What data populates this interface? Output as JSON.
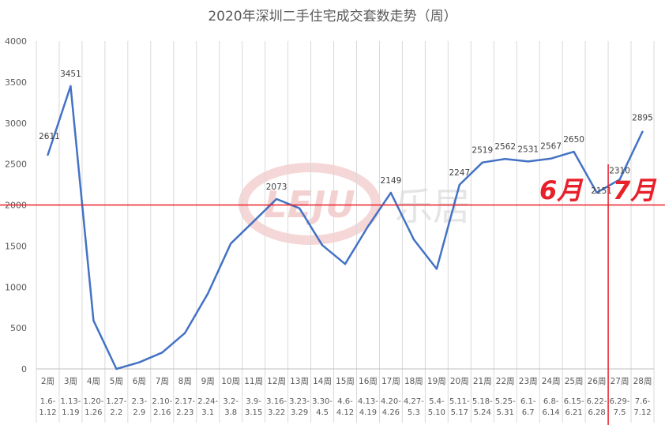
{
  "chart_data": {
    "type": "line",
    "title": "2020年深圳二手住宅成交套数走势（周）",
    "ylim": [
      0,
      4000
    ],
    "yticks": [
      0,
      500,
      1000,
      1500,
      2000,
      2500,
      3000,
      3500,
      4000
    ],
    "grid": "vertical",
    "series_color": "#4472c4",
    "categories": [
      {
        "week": "2周",
        "range1": "1.6-",
        "range2": "1.12"
      },
      {
        "week": "3周",
        "range1": "1.13-",
        "range2": "1.19"
      },
      {
        "week": "4周",
        "range1": "1.20-",
        "range2": "1.26"
      },
      {
        "week": "5周",
        "range1": "1.27-",
        "range2": "2.2"
      },
      {
        "week": "6周",
        "range1": "2.3-",
        "range2": "2.9"
      },
      {
        "week": "7周",
        "range1": "2.10-",
        "range2": "2.16"
      },
      {
        "week": "8周",
        "range1": "2.17-",
        "range2": "2.23"
      },
      {
        "week": "9周",
        "range1": "2.24-",
        "range2": "3.1"
      },
      {
        "week": "10周",
        "range1": "3.2-",
        "range2": "3.8"
      },
      {
        "week": "11周",
        "range1": "3.9-",
        "range2": "3.15"
      },
      {
        "week": "12周",
        "range1": "3.16-",
        "range2": "3.22"
      },
      {
        "week": "13周",
        "range1": "3.23-",
        "range2": "3.29"
      },
      {
        "week": "14周",
        "range1": "3.30-",
        "range2": "4.5"
      },
      {
        "week": "15周",
        "range1": "4.6-",
        "range2": "4.12"
      },
      {
        "week": "16周",
        "range1": "4.13-",
        "range2": "4.19"
      },
      {
        "week": "17周",
        "range1": "4.20-",
        "range2": "4.26"
      },
      {
        "week": "18周",
        "range1": "4.27-",
        "range2": "5.3"
      },
      {
        "week": "19周",
        "range1": "5.4-",
        "range2": "5.10"
      },
      {
        "week": "20周",
        "range1": "5.11-",
        "range2": "5.17"
      },
      {
        "week": "21周",
        "range1": "5.18-",
        "range2": "5.24"
      },
      {
        "week": "22周",
        "range1": "5.25-",
        "range2": "5.31"
      },
      {
        "week": "23周",
        "range1": "6.1-",
        "range2": "6.7"
      },
      {
        "week": "24周",
        "range1": "6.8-",
        "range2": "6.14"
      },
      {
        "week": "25周",
        "range1": "6.15-",
        "range2": "6.21"
      },
      {
        "week": "26周",
        "range1": "6.22-",
        "range2": "6.28"
      },
      {
        "week": "27周",
        "range1": "6.29-",
        "range2": "7.5"
      },
      {
        "week": "28周",
        "range1": "7.6-",
        "range2": "7.12"
      }
    ],
    "values": [
      2611,
      3451,
      590,
      0,
      80,
      200,
      440,
      920,
      1530,
      1800,
      2073,
      1960,
      1510,
      1280,
      1740,
      2149,
      1580,
      1220,
      2247,
      2519,
      2562,
      2531,
      2567,
      2650,
      2151,
      2310,
      2895
    ],
    "data_labels": [
      {
        "index": 0,
        "text": "2611"
      },
      {
        "index": 1,
        "text": "3451"
      },
      {
        "index": 10,
        "text": "2073"
      },
      {
        "index": 15,
        "text": "2149"
      },
      {
        "index": 18,
        "text": "2247"
      },
      {
        "index": 19,
        "text": "2519"
      },
      {
        "index": 20,
        "text": "2562"
      },
      {
        "index": 21,
        "text": "2531"
      },
      {
        "index": 22,
        "text": "2567"
      },
      {
        "index": 23,
        "text": "2650"
      },
      {
        "index": 24,
        "text": "2151"
      },
      {
        "index": 25,
        "text": "2310"
      },
      {
        "index": 26,
        "text": "2895"
      }
    ],
    "reference_line": {
      "y": 2000,
      "color": "#e8202a"
    },
    "divider": {
      "between_index": [
        24,
        25
      ],
      "color": "#e8202a"
    },
    "month_labels": {
      "left": "6月",
      "right": "7月"
    },
    "watermark": {
      "logo": "LEJU",
      "text": "乐居"
    }
  }
}
